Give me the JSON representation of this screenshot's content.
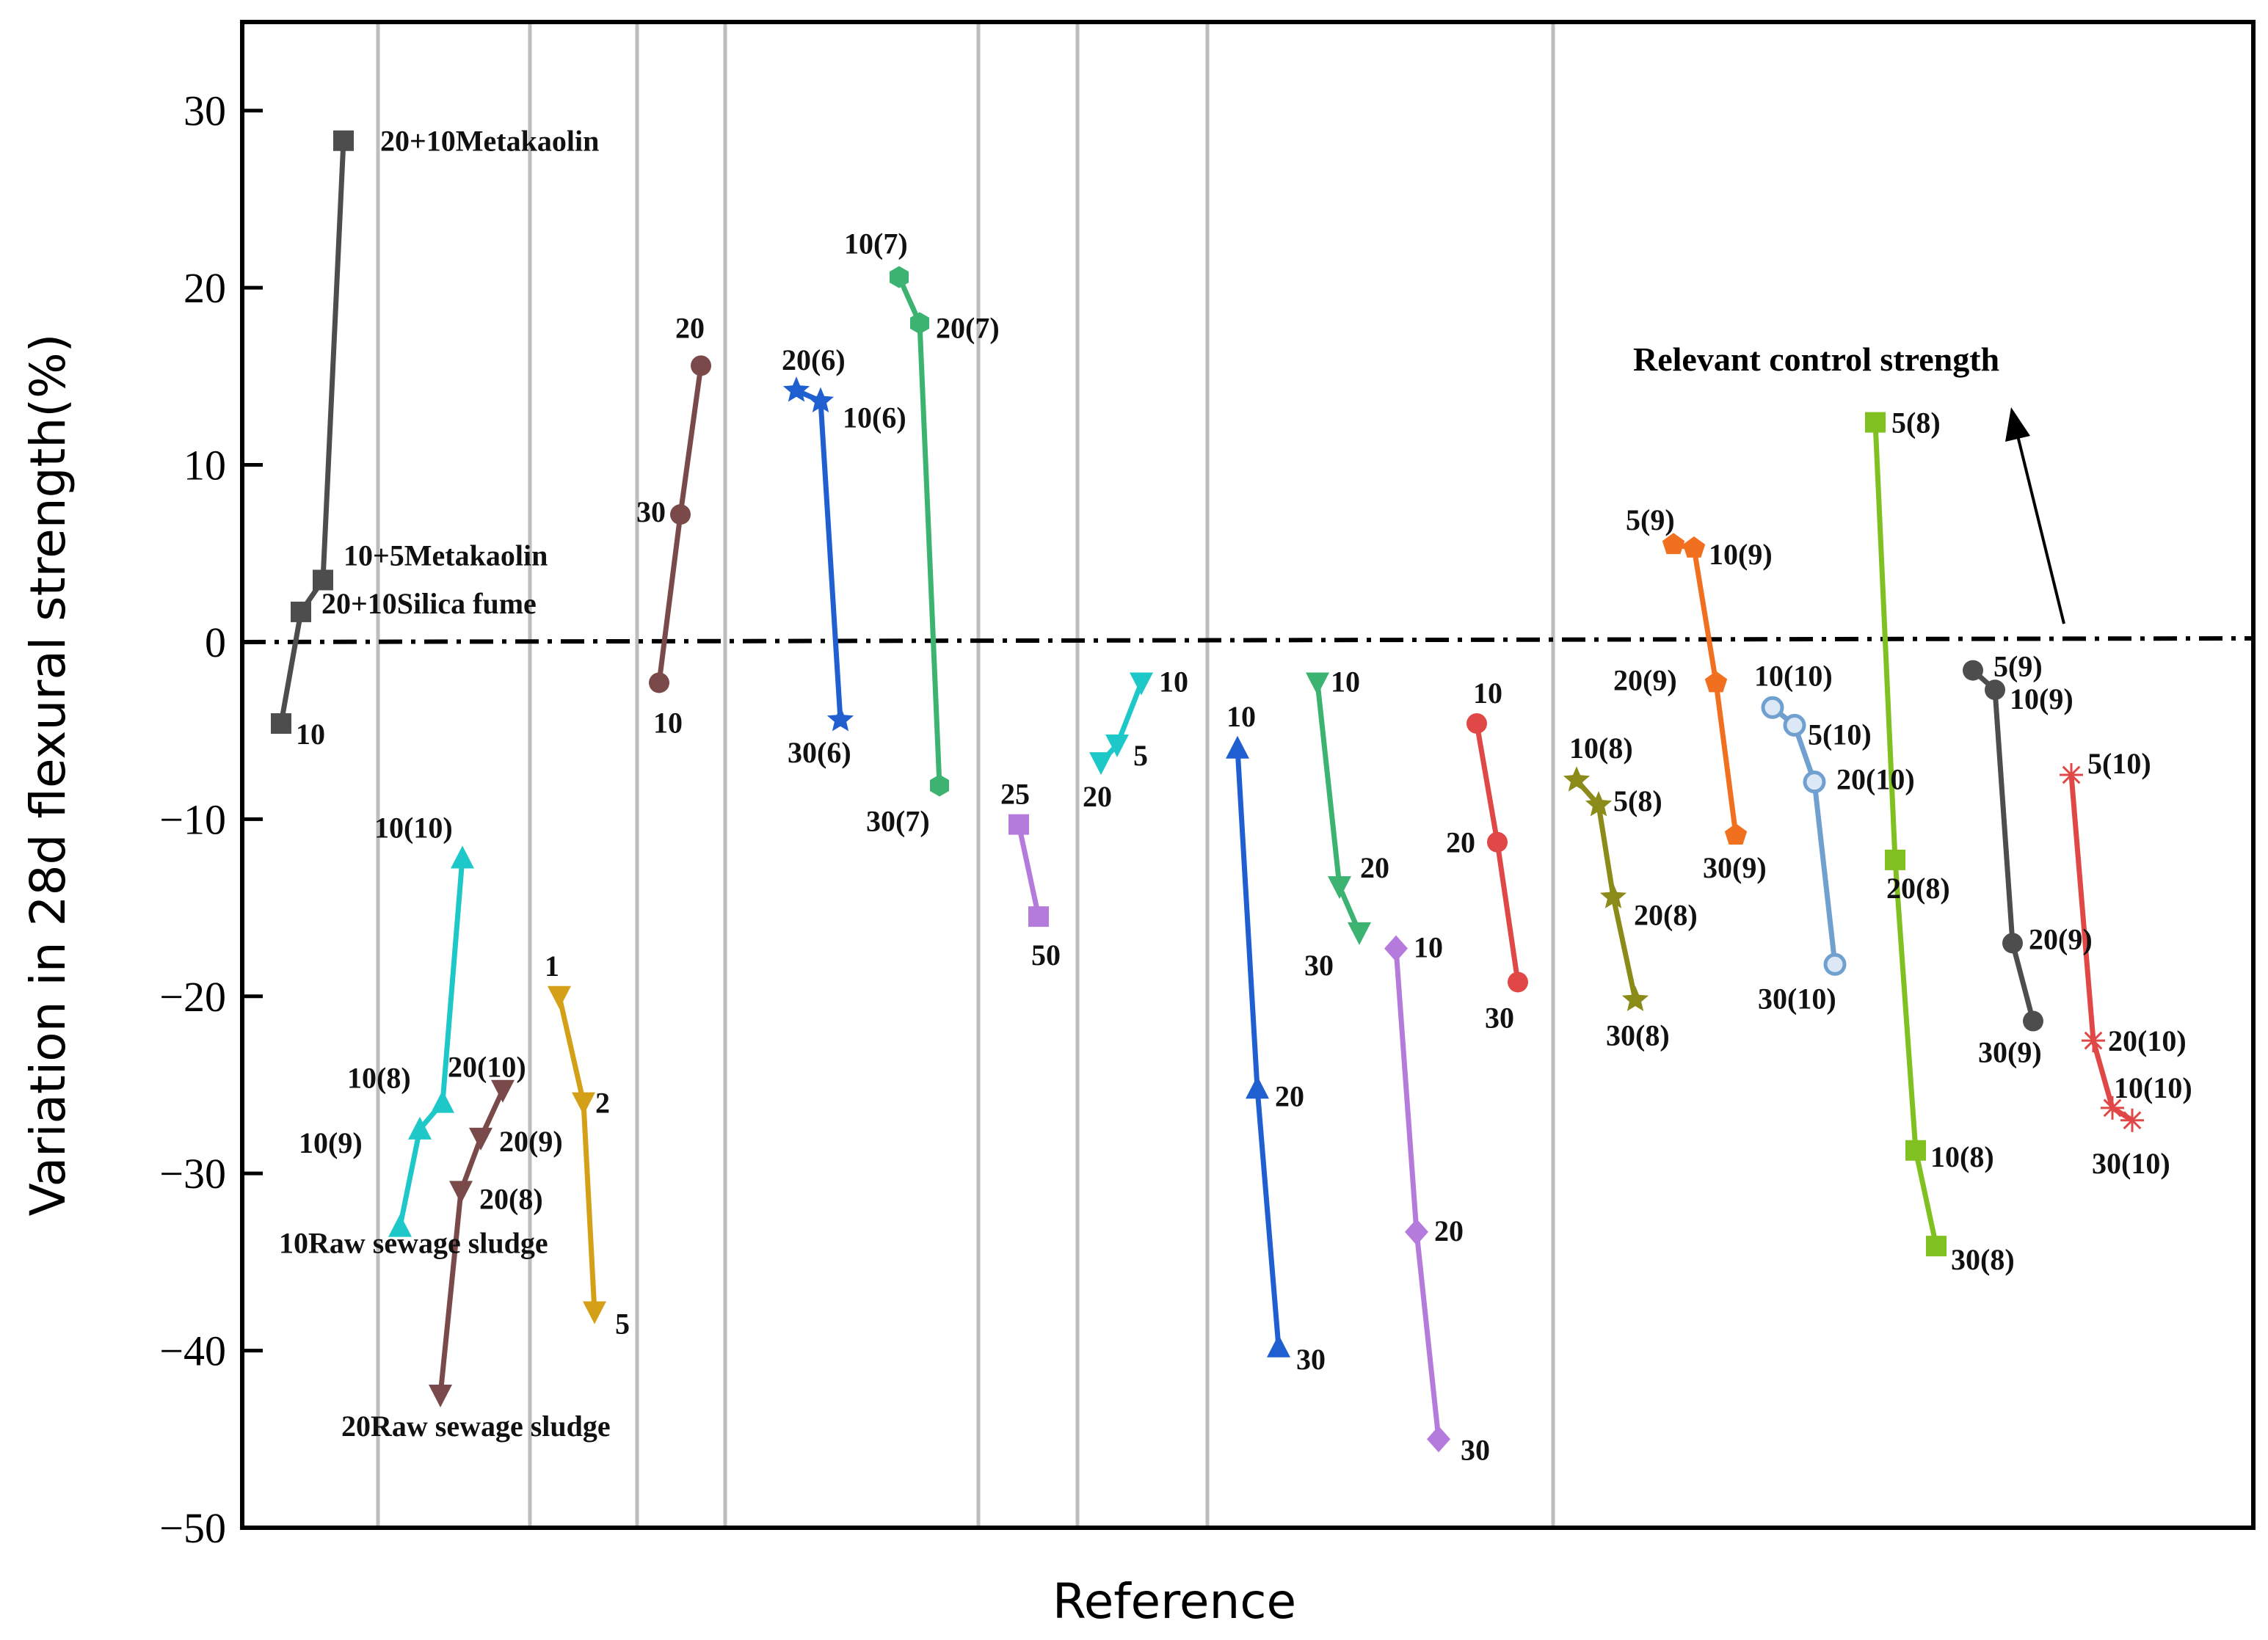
{
  "chart_data": {
    "type": "line",
    "title": "",
    "xlabel": "Reference",
    "ylabel": "Variation in 28d flexural strength(%)",
    "ylim": [
      -50,
      35
    ],
    "yticks": [
      30,
      20,
      10,
      0,
      -10,
      -20,
      -30,
      -40,
      -50
    ],
    "ytick_labels": [
      "30",
      "20",
      "10",
      "0",
      "−10",
      "−20",
      "−30",
      "−40",
      "−50"
    ],
    "control_label": "Relevant control strength",
    "control_value": 0,
    "series": [
      {
        "name": "s1",
        "color": "#4d4d4d",
        "marker": "square",
        "points": [
          {
            "y": -4.6,
            "label": "10"
          },
          {
            "y": 1.7,
            "label": "20+10Silica fume"
          },
          {
            "y": 3.5,
            "label": "10+5Metakaolin"
          },
          {
            "y": 28.3,
            "label": "20+10Metakaolin"
          }
        ]
      },
      {
        "name": "s2",
        "color": "#1fc8c8",
        "marker": "triangle-up",
        "points": [
          {
            "y": -33.0,
            "label": "10Raw sewage sludge"
          },
          {
            "y": -27.5,
            "label": "10(9)"
          },
          {
            "y": -26.0,
            "label": "10(8)"
          },
          {
            "y": -12.2,
            "label": "10(10)"
          }
        ]
      },
      {
        "name": "s3",
        "color": "#7a4a4a",
        "marker": "triangle-down",
        "points": [
          {
            "y": -42.5,
            "label": "20Raw sewage sludge"
          },
          {
            "y": -31.0,
            "label": "20(8)"
          },
          {
            "y": -28.0,
            "label": "20(9)"
          },
          {
            "y": -25.3,
            "label": "20(10)"
          }
        ]
      },
      {
        "name": "s4",
        "color": "#d4a017",
        "marker": "triangle-down",
        "points": [
          {
            "y": -20.0,
            "label": "1"
          },
          {
            "y": -26.0,
            "label": "2"
          },
          {
            "y": -37.8,
            "label": "5"
          }
        ]
      },
      {
        "name": "s5",
        "color": "#7a4a4a",
        "marker": "circle",
        "points": [
          {
            "y": -2.3,
            "label": "10"
          },
          {
            "y": 7.2,
            "label": "30"
          },
          {
            "y": 15.6,
            "label": "20"
          }
        ]
      },
      {
        "name": "s6",
        "color": "#1f5fd0",
        "marker": "star",
        "points": [
          {
            "y": 14.2,
            "label": "20(6)"
          },
          {
            "y": 13.6,
            "label": "10(6)"
          },
          {
            "y": -4.4,
            "label": "30(6)"
          }
        ]
      },
      {
        "name": "s7",
        "color": "#3cb371",
        "marker": "hexagon",
        "points": [
          {
            "y": 20.6,
            "label": "10(7)"
          },
          {
            "y": 18.0,
            "label": "20(7)"
          },
          {
            "y": -8.1,
            "label": "30(7)"
          }
        ]
      },
      {
        "name": "s8",
        "color": "#b57bdc",
        "marker": "square",
        "points": [
          {
            "y": -10.3,
            "label": "25"
          },
          {
            "y": -15.5,
            "label": "50"
          }
        ]
      },
      {
        "name": "s9",
        "color": "#1fc8c8",
        "marker": "triangle-down",
        "points": [
          {
            "y": -6.8,
            "label": "20"
          },
          {
            "y": -5.8,
            "label": "5"
          },
          {
            "y": -2.3,
            "label": "10"
          }
        ]
      },
      {
        "name": "s10",
        "color": "#1f5fd0",
        "marker": "triangle-up",
        "points": [
          {
            "y": -6.0,
            "label": "10"
          },
          {
            "y": -25.2,
            "label": "20"
          },
          {
            "y": -39.8,
            "label": "30"
          }
        ]
      },
      {
        "name": "s11",
        "color": "#3cb371",
        "marker": "triangle-down",
        "points": [
          {
            "y": -2.3,
            "label": "10"
          },
          {
            "y": -13.8,
            "label": "20"
          },
          {
            "y": -16.4,
            "label": "30"
          }
        ]
      },
      {
        "name": "s12",
        "color": "#b57bdc",
        "marker": "diamond",
        "points": [
          {
            "y": -17.3,
            "label": "10"
          },
          {
            "y": -33.3,
            "label": "20"
          },
          {
            "y": -45.0,
            "label": "30"
          }
        ]
      },
      {
        "name": "s13",
        "color": "#e04848",
        "marker": "circle",
        "points": [
          {
            "y": -4.6,
            "label": "10"
          },
          {
            "y": -11.3,
            "label": "20"
          },
          {
            "y": -19.2,
            "label": "30"
          }
        ]
      },
      {
        "name": "s14",
        "color": "#8b8b1a",
        "marker": "star",
        "points": [
          {
            "y": -7.8,
            "label": "10(8)"
          },
          {
            "y": -9.2,
            "label": "5(8)"
          },
          {
            "y": -14.4,
            "label": "20(8)"
          },
          {
            "y": -20.2,
            "label": "30(8)"
          }
        ]
      },
      {
        "name": "s15",
        "color": "#f07020",
        "marker": "pentagon",
        "points": [
          {
            "y": 5.5,
            "label": "5(9)"
          },
          {
            "y": 5.3,
            "label": "10(9)"
          },
          {
            "y": -2.3,
            "label": "20(9)"
          },
          {
            "y": -10.9,
            "label": "30(9)"
          }
        ]
      },
      {
        "name": "s16",
        "color": "#6fa0d0",
        "marker": "circle-open",
        "points": [
          {
            "y": -3.7,
            "label": "10(10)"
          },
          {
            "y": -4.7,
            "label": "5(10)"
          },
          {
            "y": -7.9,
            "label": "20(10)"
          },
          {
            "y": -18.2,
            "label": "30(10)"
          }
        ]
      },
      {
        "name": "s17",
        "color": "#80c020",
        "marker": "square",
        "points": [
          {
            "y": 12.4,
            "label": "5(8)"
          },
          {
            "y": -12.3,
            "label": "20(8)"
          },
          {
            "y": -28.7,
            "label": "10(8)"
          },
          {
            "y": -34.1,
            "label": "30(8)"
          }
        ]
      },
      {
        "name": "s18",
        "color": "#4d4d4d",
        "marker": "circle",
        "points": [
          {
            "y": -1.6,
            "label": "5(9)"
          },
          {
            "y": -2.7,
            "label": "10(9)"
          },
          {
            "y": -17.0,
            "label": "20(9)"
          },
          {
            "y": -21.4,
            "label": "30(9)"
          }
        ]
      },
      {
        "name": "s19",
        "color": "#e04848",
        "marker": "asterisk",
        "points": [
          {
            "y": -7.5,
            "label": "5(10)"
          },
          {
            "y": -22.5,
            "label": "20(10)"
          },
          {
            "y": -26.3,
            "label": "10(10)"
          },
          {
            "y": -27.0,
            "label": "30(10)"
          }
        ]
      }
    ]
  }
}
